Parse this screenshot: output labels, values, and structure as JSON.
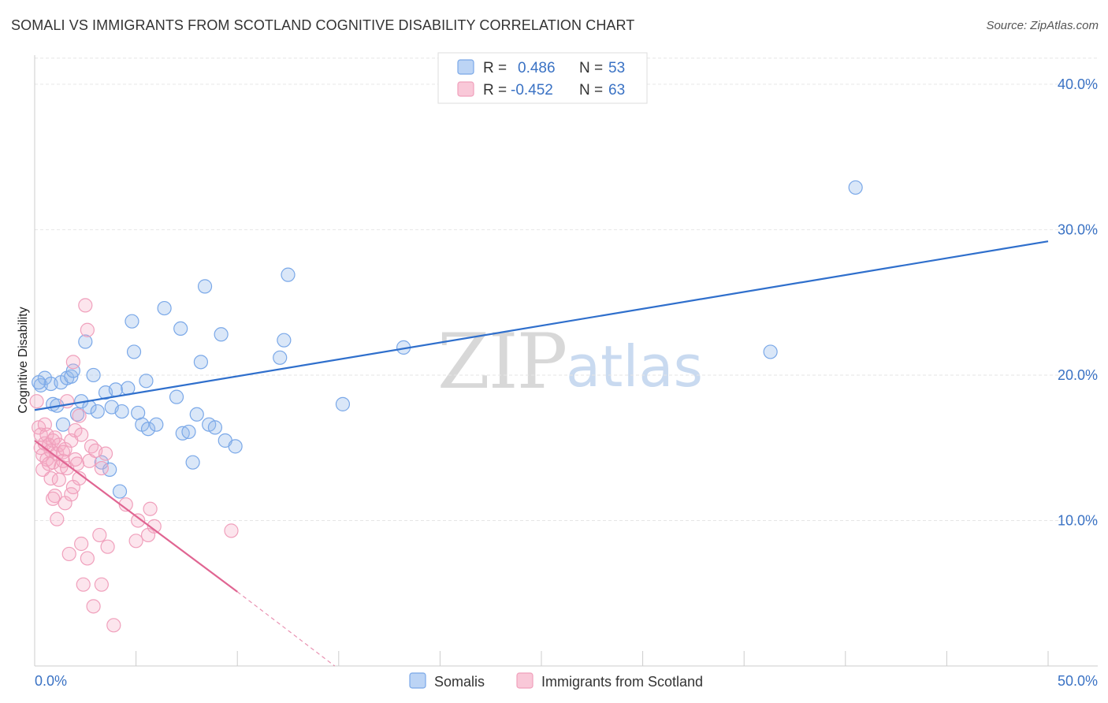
{
  "title": "SOMALI VS IMMIGRANTS FROM SCOTLAND COGNITIVE DISABILITY CORRELATION CHART",
  "source": "Source: ZipAtlas.com",
  "watermark": {
    "zip": "ZIP",
    "atlas": "atlas"
  },
  "colors": {
    "somali": "#7aa8e8",
    "somali_line": "#2f6fcc",
    "scotland": "#f0a0bc",
    "scotland_line": "#e06592",
    "accent_text": "#3a72c4"
  },
  "legend": {
    "r_label": "R =",
    "n_label": "N =",
    "somali_r": "0.486",
    "somali_n": "53",
    "scotland_r": "-0.452",
    "scotland_n": "63"
  },
  "chart_data": {
    "type": "scatter",
    "xlabel": "",
    "ylabel": "Cognitive Disability",
    "xlim": [
      0,
      50
    ],
    "ylim": [
      0,
      42
    ],
    "x_tick_labels": [
      "0.0%",
      "50.0%"
    ],
    "y_ticks": [
      10,
      20,
      30,
      40
    ],
    "y_tick_labels": [
      "10.0%",
      "20.0%",
      "30.0%",
      "40.0%"
    ],
    "series": [
      {
        "name": "Somalis",
        "trend": {
          "x0": 0,
          "y0": 17.6,
          "x1": 50,
          "y1": 29.2
        },
        "points": [
          [
            0.3,
            19.3
          ],
          [
            0.5,
            19.8
          ],
          [
            0.8,
            19.4
          ],
          [
            0.9,
            18.0
          ],
          [
            1.1,
            17.9
          ],
          [
            1.3,
            19.5
          ],
          [
            1.4,
            16.6
          ],
          [
            1.6,
            19.8
          ],
          [
            1.8,
            19.9
          ],
          [
            1.9,
            20.3
          ],
          [
            2.1,
            17.3
          ],
          [
            2.3,
            18.2
          ],
          [
            2.5,
            22.3
          ],
          [
            2.7,
            17.8
          ],
          [
            2.9,
            20.0
          ],
          [
            3.1,
            17.5
          ],
          [
            3.3,
            14.0
          ],
          [
            3.5,
            18.8
          ],
          [
            3.7,
            13.5
          ],
          [
            3.8,
            17.8
          ],
          [
            4.0,
            19.0
          ],
          [
            4.2,
            12.0
          ],
          [
            4.3,
            17.5
          ],
          [
            4.6,
            19.1
          ],
          [
            4.8,
            23.7
          ],
          [
            4.9,
            21.6
          ],
          [
            5.1,
            17.4
          ],
          [
            5.3,
            16.6
          ],
          [
            5.5,
            19.6
          ],
          [
            5.6,
            16.3
          ],
          [
            6.0,
            16.6
          ],
          [
            6.4,
            24.6
          ],
          [
            7.0,
            18.5
          ],
          [
            7.2,
            23.2
          ],
          [
            7.3,
            16.0
          ],
          [
            7.6,
            16.1
          ],
          [
            7.8,
            14.0
          ],
          [
            8.0,
            17.3
          ],
          [
            8.2,
            20.9
          ],
          [
            8.4,
            26.1
          ],
          [
            8.6,
            16.6
          ],
          [
            8.9,
            16.4
          ],
          [
            9.2,
            22.8
          ],
          [
            9.4,
            15.5
          ],
          [
            9.9,
            15.1
          ],
          [
            12.1,
            21.2
          ],
          [
            12.3,
            22.4
          ],
          [
            12.5,
            26.9
          ],
          [
            15.2,
            18.0
          ],
          [
            18.2,
            21.9
          ],
          [
            36.3,
            21.6
          ],
          [
            40.5,
            32.9
          ],
          [
            0.2,
            19.5
          ]
        ]
      },
      {
        "name": "Immigrants from Scotland",
        "trend": {
          "x0": 0,
          "y0": 15.5,
          "x1": 10,
          "y1": 5.1,
          "dash_to_x": 14.8,
          "dash_to_y": 0
        },
        "points": [
          [
            0.1,
            18.2
          ],
          [
            0.2,
            16.4
          ],
          [
            0.3,
            15.9
          ],
          [
            0.3,
            15.0
          ],
          [
            0.4,
            14.5
          ],
          [
            0.4,
            13.5
          ],
          [
            0.5,
            16.6
          ],
          [
            0.5,
            15.3
          ],
          [
            0.6,
            14.2
          ],
          [
            0.6,
            15.9
          ],
          [
            0.7,
            15.2
          ],
          [
            0.8,
            14.8
          ],
          [
            0.8,
            12.9
          ],
          [
            0.9,
            15.5
          ],
          [
            0.9,
            14.0
          ],
          [
            1.0,
            11.7
          ],
          [
            1.0,
            15.7
          ],
          [
            1.1,
            10.1
          ],
          [
            1.1,
            14.6
          ],
          [
            1.2,
            15.2
          ],
          [
            1.2,
            12.8
          ],
          [
            1.3,
            13.7
          ],
          [
            1.4,
            14.7
          ],
          [
            1.4,
            14.1
          ],
          [
            1.5,
            11.2
          ],
          [
            1.6,
            18.2
          ],
          [
            1.6,
            13.6
          ],
          [
            1.7,
            7.7
          ],
          [
            1.8,
            11.8
          ],
          [
            1.8,
            15.5
          ],
          [
            1.9,
            12.3
          ],
          [
            1.9,
            20.9
          ],
          [
            2.0,
            14.2
          ],
          [
            2.0,
            16.2
          ],
          [
            2.1,
            13.9
          ],
          [
            2.2,
            17.2
          ],
          [
            2.3,
            15.9
          ],
          [
            2.3,
            8.4
          ],
          [
            2.4,
            5.6
          ],
          [
            2.5,
            24.8
          ],
          [
            2.6,
            7.4
          ],
          [
            2.6,
            23.1
          ],
          [
            2.7,
            14.1
          ],
          [
            2.8,
            15.1
          ],
          [
            2.9,
            4.1
          ],
          [
            3.0,
            14.8
          ],
          [
            3.2,
            9.0
          ],
          [
            3.3,
            13.6
          ],
          [
            3.3,
            5.6
          ],
          [
            3.5,
            14.6
          ],
          [
            3.6,
            8.2
          ],
          [
            3.9,
            2.8
          ],
          [
            4.5,
            11.1
          ],
          [
            5.0,
            8.6
          ],
          [
            5.1,
            10.0
          ],
          [
            5.6,
            9.0
          ],
          [
            5.7,
            10.8
          ],
          [
            5.9,
            9.6
          ],
          [
            9.7,
            9.3
          ],
          [
            0.9,
            11.5
          ],
          [
            1.5,
            14.9
          ],
          [
            2.2,
            12.9
          ],
          [
            0.7,
            13.9
          ]
        ]
      }
    ],
    "legend_entries": [
      "Somalis",
      "Immigrants from Scotland"
    ],
    "grid": true
  }
}
